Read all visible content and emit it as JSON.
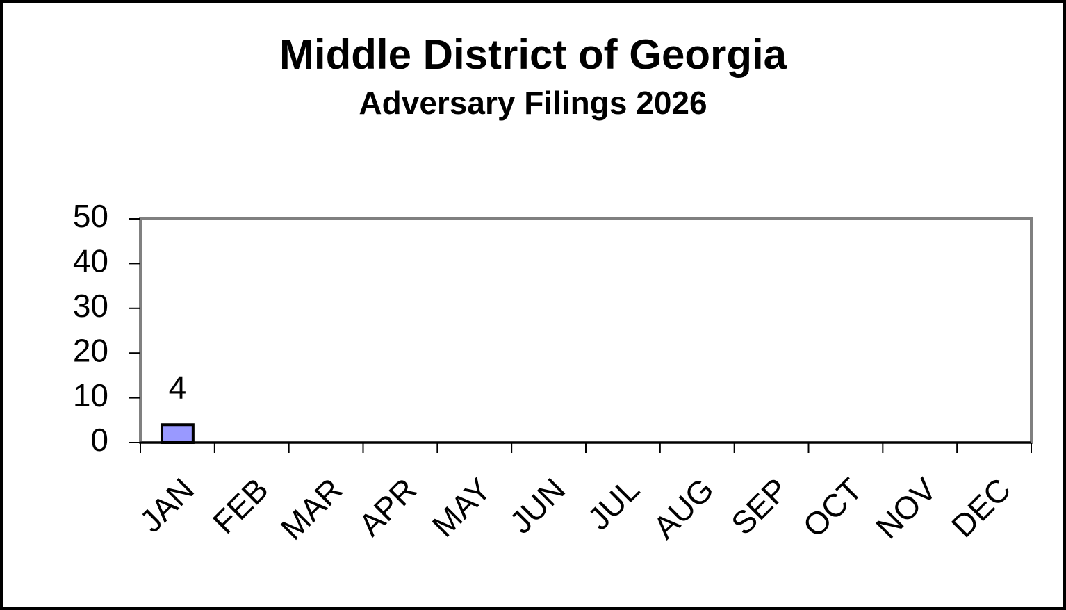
{
  "chart_data": {
    "type": "bar",
    "title": "Middle District of Georgia",
    "subtitle": "Adversary Filings 2026",
    "categories": [
      "JAN",
      "FEB",
      "MAR",
      "APR",
      "MAY",
      "JUN",
      "JUL",
      "AUG",
      "SEP",
      "OCT",
      "NOV",
      "DEC"
    ],
    "values": [
      4,
      null,
      null,
      null,
      null,
      null,
      null,
      null,
      null,
      null,
      null,
      null
    ],
    "color": "#9999ff",
    "ylim": [
      0,
      50
    ],
    "yticks": [
      0,
      10,
      20,
      30,
      40,
      50
    ],
    "grid": false
  }
}
